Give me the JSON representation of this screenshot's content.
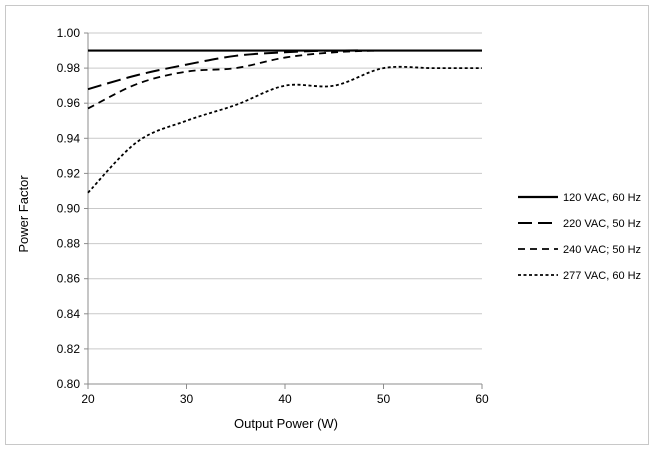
{
  "chart_data": {
    "type": "line",
    "title": "",
    "xlabel": "Output Power (W)",
    "ylabel": "Power Factor",
    "xlim": [
      20,
      60
    ],
    "ylim": [
      0.8,
      1.0
    ],
    "x_ticks": [
      20,
      30,
      40,
      50,
      60
    ],
    "x_tick_labels": [
      "20",
      "30",
      "40",
      "50",
      "60"
    ],
    "y_ticks": [
      0.8,
      0.82,
      0.84,
      0.86,
      0.88,
      0.9,
      0.92,
      0.94,
      0.96,
      0.98,
      1.0
    ],
    "y_tick_labels": [
      "0.80",
      "0.82",
      "0.84",
      "0.86",
      "0.88",
      "0.90",
      "0.92",
      "0.94",
      "0.96",
      "0.98",
      "1.00"
    ],
    "grid": "horizontal",
    "legend_position": "right",
    "series": [
      {
        "name": "120 VAC, 60 Hz",
        "dash": "solid",
        "color": "#000000",
        "points": [
          [
            20,
            0.99
          ],
          [
            30,
            0.99
          ],
          [
            40,
            0.99
          ],
          [
            50,
            0.99
          ],
          [
            60,
            0.99
          ]
        ]
      },
      {
        "name": "220 VAC, 50 Hz",
        "dash": "long-dash",
        "color": "#000000",
        "points": [
          [
            20,
            0.968
          ],
          [
            25,
            0.976
          ],
          [
            30,
            0.982
          ],
          [
            35,
            0.987
          ],
          [
            40,
            0.989
          ],
          [
            45,
            0.99
          ],
          [
            50,
            0.99
          ],
          [
            55,
            0.99
          ],
          [
            60,
            0.99
          ]
        ]
      },
      {
        "name": "240 VAC; 50 Hz",
        "dash": "dash",
        "color": "#000000",
        "points": [
          [
            20,
            0.957
          ],
          [
            25,
            0.971
          ],
          [
            30,
            0.978
          ],
          [
            35,
            0.98
          ],
          [
            40,
            0.986
          ],
          [
            45,
            0.989
          ],
          [
            50,
            0.99
          ],
          [
            55,
            0.99
          ],
          [
            60,
            0.99
          ]
        ]
      },
      {
        "name": "277 VAC, 60 Hz",
        "dash": "dot",
        "color": "#000000",
        "points": [
          [
            20,
            0.909
          ],
          [
            25,
            0.938
          ],
          [
            30,
            0.95
          ],
          [
            35,
            0.959
          ],
          [
            40,
            0.97
          ],
          [
            45,
            0.97
          ],
          [
            50,
            0.98
          ],
          [
            55,
            0.98
          ],
          [
            60,
            0.98
          ]
        ]
      }
    ]
  }
}
